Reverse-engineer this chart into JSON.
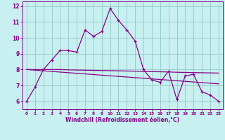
{
  "xlabel": "Windchill (Refroidissement éolien,°C)",
  "background_color": "#c8f0f0",
  "line_color": "#880088",
  "grid_color": "#99cccc",
  "xlim": [
    -0.5,
    23.5
  ],
  "ylim": [
    5.5,
    12.3
  ],
  "xticks": [
    0,
    1,
    2,
    3,
    4,
    5,
    6,
    7,
    8,
    9,
    10,
    11,
    12,
    13,
    14,
    15,
    16,
    17,
    18,
    19,
    20,
    21,
    22,
    23
  ],
  "yticks": [
    6,
    7,
    8,
    9,
    10,
    11,
    12
  ],
  "curve1_x": [
    0,
    1,
    2,
    3,
    4,
    5,
    6,
    7,
    8,
    9,
    10,
    11,
    12,
    13,
    14,
    15,
    16,
    17,
    18,
    19,
    20,
    21,
    22,
    23
  ],
  "curve1_y": [
    6.0,
    6.9,
    8.0,
    8.6,
    9.2,
    9.2,
    9.1,
    10.5,
    10.1,
    10.4,
    11.85,
    11.1,
    10.5,
    9.8,
    8.0,
    7.35,
    7.2,
    7.9,
    6.1,
    7.6,
    7.7,
    6.6,
    6.4,
    6.0
  ],
  "curve2_x": [
    0,
    23
  ],
  "curve2_y": [
    8.0,
    7.1
  ],
  "curve3_x": [
    0,
    1,
    2,
    3,
    4,
    5,
    6,
    7,
    8,
    9,
    10,
    11,
    12,
    13,
    14,
    15,
    16,
    17,
    18,
    19,
    20,
    21,
    22,
    23
  ],
  "curve3_y": [
    8.0,
    8.0,
    8.0,
    8.0,
    8.0,
    7.98,
    7.97,
    7.96,
    7.95,
    7.94,
    7.93,
    7.92,
    7.91,
    7.9,
    7.88,
    7.87,
    7.86,
    7.85,
    7.83,
    7.82,
    7.81,
    7.8,
    7.79,
    7.78
  ]
}
